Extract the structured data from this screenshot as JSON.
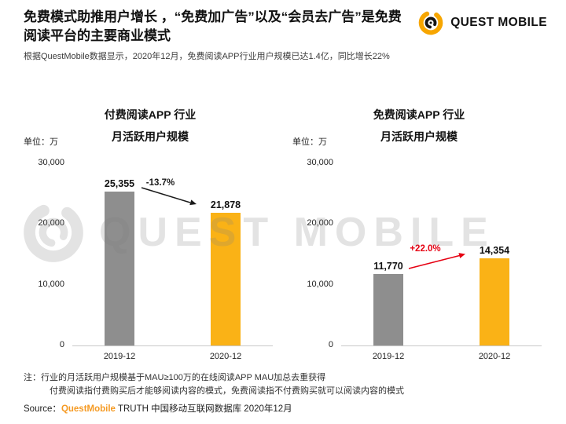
{
  "header": {
    "title_line1": "免费模式助推用户增长 ，“免费加广告”以及“会员去广告”是免费",
    "title_line2": "阅读平台的主要商业模式",
    "subtitle": "根据QuestMobile数据显示，2020年12月，免费阅读APP行业用户规模已达1.4亿，同比增长22%",
    "logo_text": "QUEST MOBILE"
  },
  "watermark": {
    "text": "QUEST MOBILE"
  },
  "colors": {
    "brand_yellow": "#F7A600",
    "bar_gray": "#8E8E8E",
    "bar_yellow": "#FAB216",
    "decline_arrow": "#1A1A1A",
    "growth_arrow": "#E60012",
    "source_brand_orange": "#F59A23"
  },
  "chart_data": [
    {
      "type": "bar",
      "title_line1": "付费阅读APP 行业",
      "title_line2": "月活跃用户规模",
      "unit_label": "单位：万",
      "categories": [
        "2019-12",
        "2020-12"
      ],
      "values": [
        25355,
        21878
      ],
      "value_labels": [
        "25,355",
        "21,878"
      ],
      "bar_colors": [
        "#8E8E8E",
        "#FAB216"
      ],
      "change_label": "-13.7%",
      "change_color": "#1A1A1A",
      "ylim": [
        0,
        30000
      ],
      "ytick_labels": [
        "30,000",
        "20,000",
        "10,000",
        "0"
      ],
      "legend": "none",
      "grid": "off"
    },
    {
      "type": "bar",
      "title_line1": "免费阅读APP 行业",
      "title_line2": "月活跃用户规模",
      "unit_label": "单位：万",
      "categories": [
        "2019-12",
        "2020-12"
      ],
      "values": [
        11770,
        14354
      ],
      "value_labels": [
        "11,770",
        "14,354"
      ],
      "bar_colors": [
        "#8E8E8E",
        "#FAB216"
      ],
      "change_label": "+22.0%",
      "change_color": "#E60012",
      "ylim": [
        0,
        30000
      ],
      "ytick_labels": [
        "30,000",
        "20,000",
        "10,000",
        "0"
      ],
      "legend": "none",
      "grid": "off"
    }
  ],
  "footer": {
    "note_line1": "注：行业的月活跃用户规模基于MAU≥100万的在线阅读APP MAU加总去重获得",
    "note_line2": "付费阅读指付费购买后才能够阅读内容的模式，免费阅读指不付费购买就可以阅读内容的模式",
    "source_prefix": "Source：",
    "source_brand": "QuestMobile",
    "source_suffix": " TRUTH 中国移动互联网数据库 2020年12月"
  }
}
